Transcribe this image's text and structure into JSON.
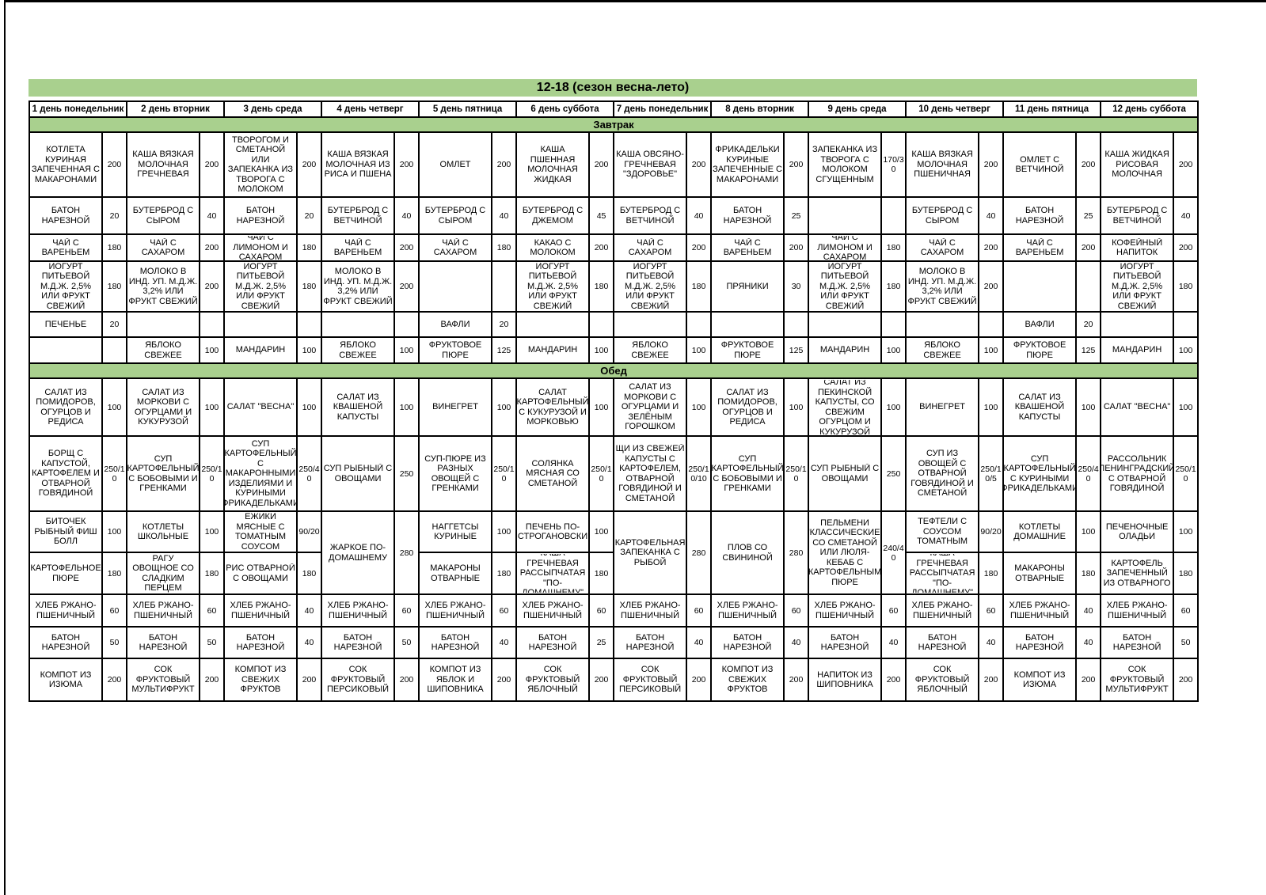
{
  "title": "12-18 (сезон весна-лето)",
  "colors": {
    "section_bg": "#a9d08e",
    "border": "#000000"
  },
  "day_headers": [
    "1 день понедельник",
    "2 день вторник",
    "3 день среда",
    "4 день четверг",
    "5 день пятница",
    "6 день суббота",
    "7 день понедельник",
    "8 день вторник",
    "9 день среда",
    "10 день четверг",
    "11 день пятница",
    "12 день суббота"
  ],
  "sections": [
    {
      "label": "Завтрак",
      "rows": [
        [
          {
            "n": "КОТЛЕТА КУРИНАЯ ЗАПЕЧЕННАЯ С МАКАРОНАМИ",
            "w": "200"
          },
          {
            "n": "КАША ВЯЗКАЯ МОЛОЧНАЯ ГРЕЧНЕВАЯ",
            "w": "200"
          },
          {
            "n": "ВАРЕНИКИ С ТВОРОГОМ И СМЕТАНОЙ ИЛИ ЗАПЕКАНКА ИЗ ТВОРОГА С МОЛОКОМ СГУЩЕННЫМ",
            "w": "200"
          },
          {
            "n": "КАША ВЯЗКАЯ МОЛОЧНАЯ ИЗ РИСА И ПШЕНА",
            "w": "200"
          },
          {
            "n": "ОМЛЕТ",
            "w": "200"
          },
          {
            "n": "КАША ПШЕННАЯ МОЛОЧНАЯ ЖИДКАЯ",
            "w": "200"
          },
          {
            "n": "КАША ОВСЯНО-ГРЕЧНЕВАЯ \"ЗДОРОВЬЕ\"",
            "w": "200"
          },
          {
            "n": "ФРИКАДЕЛЬКИ КУРИНЫЕ ЗАПЕЧЕННЫЕ С МАКАРОНАМИ",
            "w": "200"
          },
          {
            "n": "ЗАПЕКАНКА ИЗ ТВОРОГА С МОЛОКОМ СГУЩЕННЫМ",
            "w": "170/30"
          },
          {
            "n": "КАША ВЯЗКАЯ МОЛОЧНАЯ ПШЕНИЧНАЯ",
            "w": "200"
          },
          {
            "n": "ОМЛЕТ С ВЕТЧИНОЙ",
            "w": "200"
          },
          {
            "n": "КАША ЖИДКАЯ РИСОВАЯ МОЛОЧНАЯ",
            "w": "200"
          }
        ],
        [
          {
            "n": "БАТОН НАРЕЗНОЙ",
            "w": "20"
          },
          {
            "n": "БУТЕРБРОД С СЫРОМ",
            "w": "40"
          },
          {
            "n": "БАТОН НАРЕЗНОЙ",
            "w": "20"
          },
          {
            "n": "БУТЕРБРОД С ВЕТЧИНОЙ",
            "w": "40"
          },
          {
            "n": "БУТЕРБРОД С СЫРОМ",
            "w": "40"
          },
          {
            "n": "БУТЕРБРОД С ДЖЕМОМ",
            "w": "45"
          },
          {
            "n": "БУТЕРБРОД С ВЕТЧИНОЙ",
            "w": "40"
          },
          {
            "n": "БАТОН НАРЕЗНОЙ",
            "w": "25"
          },
          {
            "n": "",
            "w": ""
          },
          {
            "n": "БУТЕРБРОД С СЫРОМ",
            "w": "40"
          },
          {
            "n": "БАТОН НАРЕЗНОЙ",
            "w": "25"
          },
          {
            "n": "БУТЕРБРОД С ВЕТЧИНОЙ",
            "w": "40"
          }
        ],
        [
          {
            "n": "ЧАЙ С ВАРЕНЬЕМ",
            "w": "180"
          },
          {
            "n": "ЧАЙ С САХАРОМ",
            "w": "200"
          },
          {
            "n": "ЧАЙ С ЛИМОНОМ И САХАРОМ",
            "w": "180"
          },
          {
            "n": "ЧАЙ С ВАРЕНЬЕМ",
            "w": "200"
          },
          {
            "n": "ЧАЙ С САХАРОМ",
            "w": "180"
          },
          {
            "n": "КАКАО С МОЛОКОМ",
            "w": "200"
          },
          {
            "n": "ЧАЙ С САХАРОМ",
            "w": "200"
          },
          {
            "n": "ЧАЙ С ВАРЕНЬЕМ",
            "w": "200"
          },
          {
            "n": "ЧАЙ С ЛИМОНОМ И САХАРОМ",
            "w": "180"
          },
          {
            "n": "ЧАЙ С САХАРОМ",
            "w": "200"
          },
          {
            "n": "ЧАЙ С ВАРЕНЬЕМ",
            "w": "200"
          },
          {
            "n": "КОФЕЙНЫЙ НАПИТОК",
            "w": "200"
          }
        ],
        [
          {
            "n": "ЙОГУРТ ПИТЬЕВОЙ М.Д.Ж. 2,5% ИЛИ ФРУКТ СВЕЖИЙ",
            "w": "180"
          },
          {
            "n": "МОЛОКО В ИНД. УП. М.Д.Ж. 3,2% ИЛИ ФРУКТ СВЕЖИЙ",
            "w": "200"
          },
          {
            "n": "ЙОГУРТ ПИТЬЕВОЙ М.Д.Ж. 2,5% ИЛИ ФРУКТ СВЕЖИЙ",
            "w": "180"
          },
          {
            "n": "МОЛОКО В ИНД. УП. М.Д.Ж. 3,2% ИЛИ ФРУКТ СВЕЖИЙ",
            "w": "200"
          },
          {
            "n": "",
            "w": ""
          },
          {
            "n": "ЙОГУРТ ПИТЬЕВОЙ М.Д.Ж. 2,5% ИЛИ ФРУКТ СВЕЖИЙ",
            "w": "180"
          },
          {
            "n": "ЙОГУРТ ПИТЬЕВОЙ М.Д.Ж. 2,5% ИЛИ ФРУКТ СВЕЖИЙ",
            "w": "180"
          },
          {
            "n": "ПРЯНИКИ",
            "w": "30"
          },
          {
            "n": "ЙОГУРТ ПИТЬЕВОЙ М.Д.Ж. 2,5% ИЛИ ФРУКТ СВЕЖИЙ",
            "w": "180"
          },
          {
            "n": "МОЛОКО В ИНД. УП. М.Д.Ж. 3,2% ИЛИ ФРУКТ СВЕЖИЙ",
            "w": "200"
          },
          {
            "n": "",
            "w": ""
          },
          {
            "n": "ЙОГУРТ ПИТЬЕВОЙ М.Д.Ж. 2,5% ИЛИ ФРУКТ СВЕЖИЙ",
            "w": "180"
          }
        ],
        [
          {
            "n": "ПЕЧЕНЬЕ",
            "w": "20"
          },
          {
            "n": "",
            "w": ""
          },
          {
            "n": "",
            "w": ""
          },
          {
            "n": "",
            "w": ""
          },
          {
            "n": "ВАФЛИ",
            "w": "20"
          },
          {
            "n": "",
            "w": ""
          },
          {
            "n": "",
            "w": ""
          },
          {
            "n": "",
            "w": ""
          },
          {
            "n": "",
            "w": ""
          },
          {
            "n": "",
            "w": ""
          },
          {
            "n": "ВАФЛИ",
            "w": "20"
          },
          {
            "n": "",
            "w": ""
          }
        ],
        [
          {
            "n": "",
            "w": ""
          },
          {
            "n": "ЯБЛОКО СВЕЖЕЕ",
            "w": "100"
          },
          {
            "n": "МАНДАРИН",
            "w": "100"
          },
          {
            "n": "ЯБЛОКО СВЕЖЕЕ",
            "w": "100"
          },
          {
            "n": "ФРУКТОВОЕ ПЮРЕ",
            "w": "125"
          },
          {
            "n": "МАНДАРИН",
            "w": "100"
          },
          {
            "n": "ЯБЛОКО СВЕЖЕЕ",
            "w": "100"
          },
          {
            "n": "ФРУКТОВОЕ ПЮРЕ",
            "w": "125"
          },
          {
            "n": "МАНДАРИН",
            "w": "100"
          },
          {
            "n": "ЯБЛОКО СВЕЖЕЕ",
            "w": "100"
          },
          {
            "n": "ФРУКТОВОЕ ПЮРЕ",
            "w": "125"
          },
          {
            "n": "МАНДАРИН",
            "w": "100"
          }
        ]
      ]
    },
    {
      "label": "Обед",
      "rows": [
        [
          {
            "n": "САЛАТ ИЗ ПОМИДОРОВ, ОГУРЦОВ И РЕДИСА",
            "w": "100"
          },
          {
            "n": "САЛАТ ИЗ МОРКОВИ С ОГУРЦАМИ И КУКУРУЗОЙ",
            "w": "100"
          },
          {
            "n": "САЛАТ \"ВЕСНА\"",
            "w": "100"
          },
          {
            "n": "САЛАТ ИЗ КВАШЕНОЙ КАПУСТЫ",
            "w": "100"
          },
          {
            "n": "ВИНЕГРЕТ",
            "w": "100"
          },
          {
            "n": "САЛАТ КАРТОФЕЛЬНЫЙ С КУКУРУЗОЙ И МОРКОВЬЮ",
            "w": "100"
          },
          {
            "n": "САЛАТ ИЗ МОРКОВИ С ОГУРЦАМИ И ЗЕЛЁНЫМ ГОРОШКОМ",
            "w": "100"
          },
          {
            "n": "САЛАТ ИЗ ПОМИДОРОВ, ОГУРЦОВ И РЕДИСА",
            "w": "100"
          },
          {
            "n": "САЛАТ ИЗ ПЕКИНСКОЙ КАПУСТЫ, СО СВЕЖИМ ОГУРЦОМ И КУКУРУЗОЙ",
            "w": "100"
          },
          {
            "n": "ВИНЕГРЕТ",
            "w": "100"
          },
          {
            "n": "САЛАТ ИЗ КВАШЕНОЙ КАПУСТЫ",
            "w": "100"
          },
          {
            "n": "САЛАТ \"ВЕСНА\"",
            "w": "100"
          }
        ],
        [
          {
            "n": "БОРЩ С КАПУСТОЙ, КАРТОФЕЛЕМ И ОТВАРНОЙ ГОВЯДИНОЙ",
            "w": "250/10"
          },
          {
            "n": "СУП КАРТОФЕЛЬНЫЙ С БОБОВЫМИ И ГРЕНКАМИ",
            "w": "250/10"
          },
          {
            "n": "СУП КАРТОФЕЛЬНЫЙ С МАКАРОННЫМИ ИЗДЕЛИЯМИ И КУРИНЫМИ ФРИКАДЕЛЬКАМИ",
            "w": "250/40"
          },
          {
            "n": "СУП РЫБНЫЙ С ОВОЩАМИ",
            "w": "250"
          },
          {
            "n": "СУП-ПЮРЕ ИЗ РАЗНЫХ ОВОЩЕЙ  С ГРЕНКАМИ",
            "w": "250/10"
          },
          {
            "n": "СОЛЯНКА МЯСНАЯ СО СМЕТАНОЙ",
            "w": "250/10"
          },
          {
            "n": "ЩИ ИЗ СВЕЖЕЙ КАПУСТЫ С КАРТОФЕЛЕМ, ОТВАРНОЙ ГОВЯДИНОЙ И СМЕТАНОЙ",
            "w": "250/10/10"
          },
          {
            "n": "СУП КАРТОФЕЛЬНЫЙ С БОБОВЫМИ И ГРЕНКАМИ",
            "w": "250/10"
          },
          {
            "n": "СУП РЫБНЫЙ С ОВОЩАМИ",
            "w": "250"
          },
          {
            "n": "СУП ИЗ ОВОЩЕЙ С ОТВАРНОЙ ГОВЯДИНОЙ И СМЕТАНОЙ",
            "w": "250/10/5"
          },
          {
            "n": "СУП КАРТОФЕЛЬНЫЙ С КУРИНЫМИ ФРИКАДЕЛЬКАМИ",
            "w": "250/40"
          },
          {
            "n": "РАССОЛЬНИК ЛЕНИНГРАДСКИЙ С ОТВАРНОЙ ГОВЯДИНОЙ",
            "w": "250/10"
          }
        ],
        [
          {
            "n": "БИТОЧЕК РЫБНЫЙ ФИШ БОЛЛ",
            "w": "100"
          },
          {
            "n": "КОТЛЕТЫ ШКОЛЬНЫЕ",
            "w": "100"
          },
          {
            "n": "ЁЖИКИ МЯСНЫЕ С ТОМАТНЫМ СОУСОМ",
            "w": "90/20"
          },
          {
            "n": "ЖАРКОЕ ПО-ДОМАШНЕМУ",
            "w": "280",
            "rs": 2
          },
          {
            "n": "НАГГЕТСЫ КУРИНЫЕ",
            "w": "100"
          },
          {
            "n": "ПЕЧЕНЬ ПО-СТРОГАНОВСКИ",
            "w": "100"
          },
          {
            "n": "КАРТОФЕЛЬНАЯ ЗАПЕКАНКА С РЫБОЙ",
            "w": "280",
            "rs": 2
          },
          {
            "n": "ПЛОВ СО СВИНИНОЙ",
            "w": "280",
            "rs": 2
          },
          {
            "n": "ПЕЛЬМЕНИ \"КЛАССИЧЕСКИЕ\"  СО СМЕТАНОЙ ИЛИ ЛЮЛЯ-КЕБАБ С КАРТОФЕЛЬНЫМ ПЮРЕ",
            "w": "240/40",
            "rs": 2
          },
          {
            "n": "ТЕФТЕЛИ С СОУСОМ ТОМАТНЫМ",
            "w": "90/20"
          },
          {
            "n": "КОТЛЕТЫ ДОМАШНИЕ",
            "w": "100"
          },
          {
            "n": "ПЕЧЕНОЧНЫЕ ОЛАДЬИ",
            "w": "100"
          }
        ],
        [
          {
            "n": "КАРТОФЕЛЬНОЕ ПЮРЕ",
            "w": "180"
          },
          {
            "n": "РАГУ ОВОЩНОЕ СО СЛАДКИМ ПЕРЦЕМ",
            "w": "180"
          },
          {
            "n": "РИС ОТВАРНОЙ С ОВОЩАМИ",
            "w": "180"
          },
          {
            "sk": true
          },
          {
            "n": "МАКАРОНЫ ОТВАРНЫЕ",
            "w": "180"
          },
          {
            "n": "КАША ГРЕЧНЕВАЯ РАССЫПЧАТАЯ \"ПО-ДОМАШНЕМУ\"",
            "w": "180"
          },
          {
            "sk": true
          },
          {
            "sk": true
          },
          {
            "sk": true
          },
          {
            "n": "КАША ГРЕЧНЕВАЯ РАССЫПЧАТАЯ \"ПО-ДОМАШНЕМУ\"",
            "w": "180"
          },
          {
            "n": "МАКАРОНЫ ОТВАРНЫЕ",
            "w": "180"
          },
          {
            "n": "КАРТОФЕЛЬ ЗАПЕЧЕННЫЙ ИЗ ОТВАРНОГО",
            "w": "180"
          }
        ],
        [
          {
            "n": "ХЛЕБ РЖАНО-ПШЕНИЧНЫЙ",
            "w": "60"
          },
          {
            "n": "ХЛЕБ РЖАНО-ПШЕНИЧНЫЙ",
            "w": "60"
          },
          {
            "n": "ХЛЕБ РЖАНО-ПШЕНИЧНЫЙ",
            "w": "40"
          },
          {
            "n": "ХЛЕБ РЖАНО-ПШЕНИЧНЫЙ",
            "w": "60"
          },
          {
            "n": "ХЛЕБ РЖАНО-ПШЕНИЧНЫЙ",
            "w": "60"
          },
          {
            "n": "ХЛЕБ РЖАНО-ПШЕНИЧНЫЙ",
            "w": "60"
          },
          {
            "n": "ХЛЕБ РЖАНО-ПШЕНИЧНЫЙ",
            "w": "60"
          },
          {
            "n": "ХЛЕБ РЖАНО-ПШЕНИЧНЫЙ",
            "w": "60"
          },
          {
            "n": "ХЛЕБ РЖАНО-ПШЕНИЧНЫЙ",
            "w": "60"
          },
          {
            "n": "ХЛЕБ РЖАНО-ПШЕНИЧНЫЙ",
            "w": "60"
          },
          {
            "n": "ХЛЕБ РЖАНО-ПШЕНИЧНЫЙ",
            "w": "40"
          },
          {
            "n": "ХЛЕБ РЖАНО-ПШЕНИЧНЫЙ",
            "w": "60"
          }
        ],
        [
          {
            "n": "БАТОН НАРЕЗНОЙ",
            "w": "50"
          },
          {
            "n": "БАТОН НАРЕЗНОЙ",
            "w": "50"
          },
          {
            "n": "БАТОН НАРЕЗНОЙ",
            "w": "40"
          },
          {
            "n": "БАТОН НАРЕЗНОЙ",
            "w": "50"
          },
          {
            "n": "БАТОН НАРЕЗНОЙ",
            "w": "40"
          },
          {
            "n": "БАТОН НАРЕЗНОЙ",
            "w": "25"
          },
          {
            "n": "БАТОН НАРЕЗНОЙ",
            "w": "40"
          },
          {
            "n": "БАТОН НАРЕЗНОЙ",
            "w": "40"
          },
          {
            "n": "БАТОН НАРЕЗНОЙ",
            "w": "40"
          },
          {
            "n": "БАТОН НАРЕЗНОЙ",
            "w": "40"
          },
          {
            "n": "БАТОН НАРЕЗНОЙ",
            "w": "40"
          },
          {
            "n": "БАТОН НАРЕЗНОЙ",
            "w": "50"
          }
        ],
        [
          {
            "n": "КОМПОТ ИЗ ИЗЮМА",
            "w": "200"
          },
          {
            "n": "СОК ФРУКТОВЫЙ МУЛЬТИФРУКТ",
            "w": "200"
          },
          {
            "n": "КОМПОТ ИЗ СВЕЖИХ ФРУКТОВ",
            "w": "200"
          },
          {
            "n": "СОК ФРУКТОВЫЙ ПЕРСИКОВЫЙ",
            "w": "200"
          },
          {
            "n": "КОМПОТ ИЗ ЯБЛОК И ШИПОВНИКА",
            "w": "200"
          },
          {
            "n": "СОК ФРУКТОВЫЙ ЯБЛОЧНЫЙ",
            "w": "200"
          },
          {
            "n": "СОК ФРУКТОВЫЙ ПЕРСИКОВЫЙ",
            "w": "200"
          },
          {
            "n": "КОМПОТ ИЗ СВЕЖИХ ФРУКТОВ",
            "w": "200"
          },
          {
            "n": "НАПИТОК ИЗ ШИПОВНИКА",
            "w": "200"
          },
          {
            "n": "СОК ФРУКТОВЫЙ ЯБЛОЧНЫЙ",
            "w": "200"
          },
          {
            "n": "КОМПОТ ИЗ ИЗЮМА",
            "w": "200"
          },
          {
            "n": "СОК ФРУКТОВЫЙ МУЛЬТИФРУКТ",
            "w": "200"
          }
        ]
      ]
    }
  ]
}
